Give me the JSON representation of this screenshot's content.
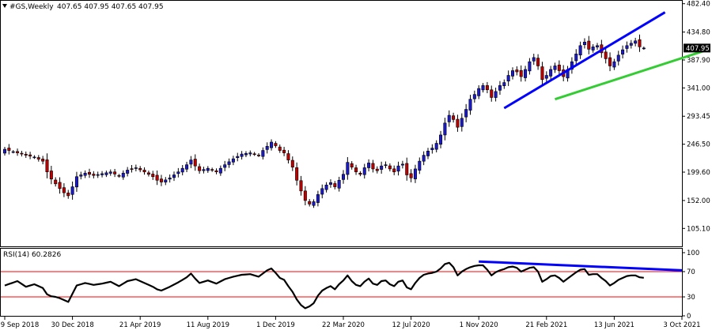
{
  "header": {
    "symbol": "#GS,Weekly",
    "ohlc": "407.65 407.95 407.65 407.95"
  },
  "rsi_label": "RSI(14) 60.2826",
  "colors": {
    "bull": "#1a1acc",
    "bear": "#c00000",
    "wick": "#000000",
    "upper_trendline": "#0000ff",
    "lower_trendline": "#33cc33",
    "rsi_line": "#000000",
    "rsi_levels": "#ff0000",
    "rsi_trendline": "#0000ff",
    "price_tag_bg": "#000000",
    "price_tag_text": "#ffffff"
  },
  "chart_data": [
    {
      "type": "candlestick",
      "ylim": [
        75,
        482
      ],
      "y_ticks": [
        "482.40",
        "434.80",
        "387.90",
        "341.00",
        "293.45",
        "246.50",
        "199.60",
        "152.00",
        "105.10"
      ],
      "x_tick_labels": [
        "9 Sep 2018",
        "30 Dec 2018",
        "21 Apr 2019",
        "11 Aug 2019",
        "1 Dec 2019",
        "22 Mar 2020",
        "12 Jul 2020",
        "1 Nov 2020",
        "21 Feb 2021",
        "13 Jun 2021",
        "3 Oct 2021"
      ],
      "x_ticks_weeks": [
        0,
        16,
        32,
        48,
        64,
        80,
        96,
        112,
        128,
        144,
        160
      ],
      "last_price": 407.95,
      "last_price_label": "407.95",
      "path": [
        [
          0,
          238
        ],
        [
          3,
          232
        ],
        [
          5,
          228
        ],
        [
          7,
          225
        ],
        [
          9,
          218
        ],
        [
          10,
          200
        ],
        [
          11,
          188
        ],
        [
          12,
          180
        ],
        [
          13,
          172
        ],
        [
          14,
          165
        ],
        [
          15,
          160
        ],
        [
          16,
          175
        ],
        [
          17,
          192
        ],
        [
          19,
          198
        ],
        [
          21,
          194
        ],
        [
          23,
          197
        ],
        [
          25,
          200
        ],
        [
          27,
          193
        ],
        [
          29,
          203
        ],
        [
          31,
          207
        ],
        [
          33,
          200
        ],
        [
          35,
          192
        ],
        [
          36,
          186
        ],
        [
          37,
          183
        ],
        [
          39,
          190
        ],
        [
          41,
          200
        ],
        [
          43,
          212
        ],
        [
          44,
          220
        ],
        [
          45,
          210
        ],
        [
          46,
          202
        ],
        [
          48,
          206
        ],
        [
          50,
          200
        ],
        [
          52,
          212
        ],
        [
          54,
          222
        ],
        [
          56,
          230
        ],
        [
          58,
          232
        ],
        [
          60,
          228
        ],
        [
          61,
          236
        ],
        [
          62,
          243
        ],
        [
          63,
          250
        ],
        [
          64,
          244
        ],
        [
          65,
          236
        ],
        [
          66,
          232
        ],
        [
          67,
          220
        ],
        [
          68,
          208
        ],
        [
          69,
          186
        ],
        [
          70,
          168
        ],
        [
          71,
          152
        ],
        [
          72,
          146
        ],
        [
          73,
          150
        ],
        [
          74,
          162
        ],
        [
          75,
          172
        ],
        [
          76,
          178
        ],
        [
          77,
          182
        ],
        [
          78,
          175
        ],
        [
          79,
          186
        ],
        [
          80,
          196
        ],
        [
          81,
          216
        ],
        [
          82,
          208
        ],
        [
          83,
          200
        ],
        [
          84,
          196
        ],
        [
          85,
          207
        ],
        [
          86,
          215
        ],
        [
          87,
          205
        ],
        [
          88,
          202
        ],
        [
          89,
          210
        ],
        [
          90,
          212
        ],
        [
          91,
          205
        ],
        [
          92,
          200
        ],
        [
          93,
          210
        ],
        [
          94,
          213
        ],
        [
          95,
          195
        ],
        [
          96,
          190
        ],
        [
          97,
          205
        ],
        [
          98,
          218
        ],
        [
          99,
          228
        ],
        [
          100,
          235
        ],
        [
          101,
          240
        ],
        [
          102,
          248
        ],
        [
          103,
          262
        ],
        [
          104,
          282
        ],
        [
          105,
          295
        ],
        [
          106,
          288
        ],
        [
          107,
          275
        ],
        [
          108,
          290
        ],
        [
          109,
          305
        ],
        [
          110,
          322
        ],
        [
          111,
          330
        ],
        [
          112,
          340
        ],
        [
          113,
          345
        ],
        [
          114,
          338
        ],
        [
          115,
          325
        ],
        [
          116,
          335
        ],
        [
          117,
          345
        ],
        [
          118,
          350
        ],
        [
          119,
          362
        ],
        [
          120,
          370
        ],
        [
          121,
          368
        ],
        [
          122,
          360
        ],
        [
          123,
          372
        ],
        [
          124,
          385
        ],
        [
          125,
          392
        ],
        [
          126,
          378
        ],
        [
          127,
          355
        ],
        [
          128,
          362
        ],
        [
          129,
          372
        ],
        [
          130,
          378
        ],
        [
          131,
          370
        ],
        [
          132,
          360
        ],
        [
          133,
          372
        ],
        [
          134,
          385
        ],
        [
          135,
          398
        ],
        [
          136,
          412
        ],
        [
          137,
          418
        ],
        [
          138,
          406
        ],
        [
          139,
          410
        ],
        [
          140,
          412
        ],
        [
          141,
          400
        ],
        [
          142,
          390
        ],
        [
          143,
          378
        ],
        [
          144,
          385
        ],
        [
          145,
          396
        ],
        [
          146,
          405
        ],
        [
          147,
          412
        ],
        [
          148,
          416
        ],
        [
          149,
          420
        ],
        [
          150,
          410
        ],
        [
          151,
          407.95
        ]
      ],
      "trendlines": [
        {
          "from": [
            118,
            307
          ],
          "to": [
            156,
            468
          ]
        },
        {
          "from": [
            130,
            322
          ],
          "to": [
            166,
            405
          ]
        }
      ]
    },
    {
      "type": "line",
      "title": "RSI(14) 60.2826",
      "ylim": [
        0,
        100
      ],
      "y_ticks": [
        "100",
        "70",
        "30",
        "0"
      ],
      "levels": [
        70,
        30
      ],
      "path": [
        [
          0,
          48
        ],
        [
          3,
          55
        ],
        [
          5,
          46
        ],
        [
          7,
          50
        ],
        [
          9,
          44
        ],
        [
          10,
          34
        ],
        [
          11,
          31
        ],
        [
          12,
          30
        ],
        [
          13,
          28
        ],
        [
          14,
          25
        ],
        [
          15,
          22
        ],
        [
          16,
          35
        ],
        [
          17,
          48
        ],
        [
          19,
          52
        ],
        [
          21,
          49
        ],
        [
          23,
          51
        ],
        [
          25,
          54
        ],
        [
          27,
          47
        ],
        [
          29,
          55
        ],
        [
          31,
          58
        ],
        [
          33,
          52
        ],
        [
          35,
          46
        ],
        [
          36,
          42
        ],
        [
          37,
          40
        ],
        [
          39,
          46
        ],
        [
          41,
          53
        ],
        [
          43,
          61
        ],
        [
          44,
          67
        ],
        [
          45,
          59
        ],
        [
          46,
          52
        ],
        [
          48,
          56
        ],
        [
          50,
          51
        ],
        [
          52,
          58
        ],
        [
          54,
          62
        ],
        [
          56,
          65
        ],
        [
          58,
          66
        ],
        [
          60,
          62
        ],
        [
          61,
          67
        ],
        [
          62,
          72
        ],
        [
          63,
          75
        ],
        [
          64,
          68
        ],
        [
          65,
          60
        ],
        [
          66,
          57
        ],
        [
          67,
          47
        ],
        [
          68,
          38
        ],
        [
          69,
          26
        ],
        [
          70,
          17
        ],
        [
          71,
          12
        ],
        [
          72,
          15
        ],
        [
          73,
          20
        ],
        [
          74,
          32
        ],
        [
          75,
          40
        ],
        [
          76,
          44
        ],
        [
          77,
          47
        ],
        [
          78,
          42
        ],
        [
          79,
          50
        ],
        [
          80,
          56
        ],
        [
          81,
          64
        ],
        [
          82,
          55
        ],
        [
          83,
          49
        ],
        [
          84,
          47
        ],
        [
          85,
          54
        ],
        [
          86,
          59
        ],
        [
          87,
          51
        ],
        [
          88,
          49
        ],
        [
          89,
          55
        ],
        [
          90,
          56
        ],
        [
          91,
          50
        ],
        [
          92,
          47
        ],
        [
          93,
          54
        ],
        [
          94,
          56
        ],
        [
          95,
          45
        ],
        [
          96,
          42
        ],
        [
          97,
          52
        ],
        [
          98,
          60
        ],
        [
          99,
          65
        ],
        [
          100,
          67
        ],
        [
          101,
          68
        ],
        [
          102,
          70
        ],
        [
          103,
          75
        ],
        [
          104,
          82
        ],
        [
          105,
          84
        ],
        [
          106,
          77
        ],
        [
          107,
          64
        ],
        [
          108,
          70
        ],
        [
          109,
          74
        ],
        [
          110,
          77
        ],
        [
          111,
          79
        ],
        [
          112,
          80
        ],
        [
          113,
          80
        ],
        [
          114,
          73
        ],
        [
          115,
          64
        ],
        [
          116,
          69
        ],
        [
          117,
          72
        ],
        [
          118,
          74
        ],
        [
          119,
          77
        ],
        [
          120,
          78
        ],
        [
          121,
          76
        ],
        [
          122,
          70
        ],
        [
          123,
          73
        ],
        [
          124,
          76
        ],
        [
          125,
          77
        ],
        [
          126,
          70
        ],
        [
          127,
          54
        ],
        [
          128,
          58
        ],
        [
          129,
          63
        ],
        [
          130,
          64
        ],
        [
          131,
          60
        ],
        [
          132,
          54
        ],
        [
          133,
          59
        ],
        [
          134,
          64
        ],
        [
          135,
          69
        ],
        [
          136,
          73
        ],
        [
          137,
          74
        ],
        [
          138,
          65
        ],
        [
          139,
          66
        ],
        [
          140,
          66
        ],
        [
          141,
          60
        ],
        [
          142,
          55
        ],
        [
          143,
          48
        ],
        [
          144,
          52
        ],
        [
          145,
          57
        ],
        [
          146,
          60
        ],
        [
          147,
          63
        ],
        [
          148,
          64
        ],
        [
          149,
          64
        ],
        [
          150,
          61
        ],
        [
          151,
          60.28
        ]
      ],
      "trendlines": [
        {
          "from": [
            112,
            86
          ],
          "to": [
            160,
            72
          ]
        }
      ]
    }
  ]
}
